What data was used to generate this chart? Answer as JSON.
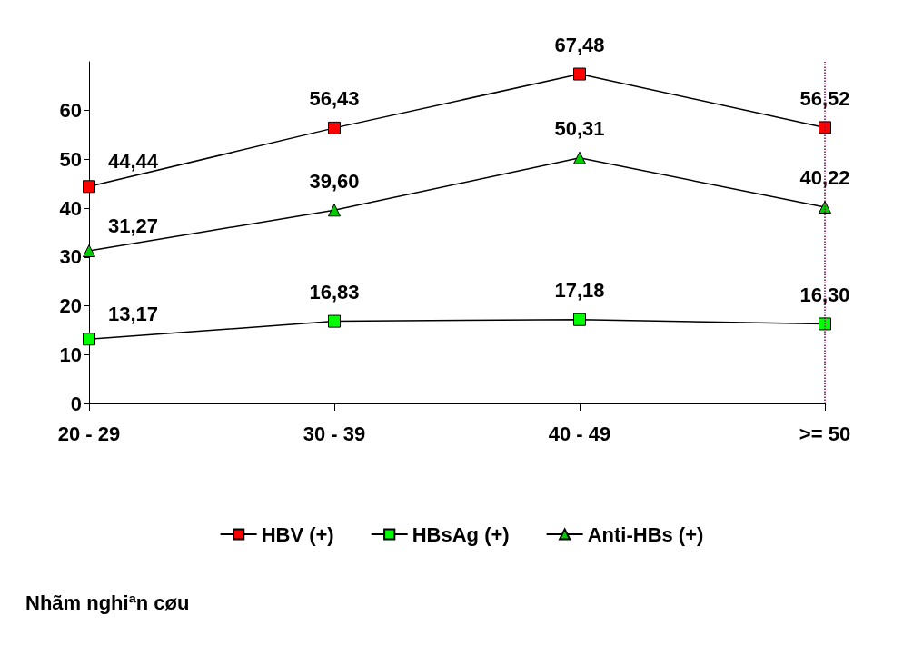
{
  "chart_data": {
    "type": "line",
    "categories": [
      "20 - 29",
      "30 - 39",
      "40 - 49",
      ">= 50"
    ],
    "series": [
      {
        "name": "HBV (+)",
        "color": "#ff0000",
        "marker": "square",
        "values": [
          44.44,
          56.43,
          67.48,
          56.52
        ],
        "value_labels": [
          "44,44",
          "56,43",
          "67,48",
          "56,52"
        ]
      },
      {
        "name": "HBsAg (+)",
        "color": "#00ff00",
        "marker": "square",
        "values": [
          13.17,
          16.83,
          17.18,
          16.3
        ],
        "value_labels": [
          "13,17",
          "16,83",
          "17,18",
          "16,30"
        ]
      },
      {
        "name": "Anti-HBs (+)",
        "color": "#00cc00",
        "marker": "triangle",
        "values": [
          31.27,
          39.6,
          50.31,
          40.22
        ],
        "value_labels": [
          "31,27",
          "39,60",
          "50,31",
          "40,22"
        ]
      }
    ],
    "ylim": [
      0,
      70
    ],
    "yticks": [
      0,
      10,
      20,
      30,
      40,
      50,
      60
    ],
    "legend": "bottom",
    "grid": false,
    "ref_lines": [
      {
        "axis": "x",
        "value": ">= 50",
        "color": "#800040",
        "line_style": "dotted"
      }
    ],
    "annotations": [
      "Nhãm nghiªn cøu"
    ]
  }
}
